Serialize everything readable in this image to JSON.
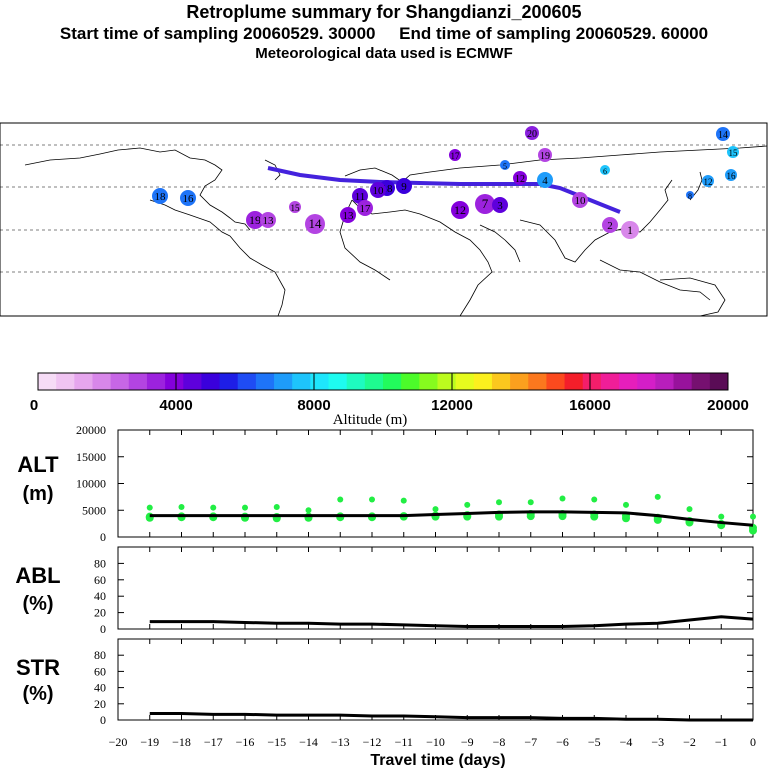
{
  "header": {
    "title": "Retroplume summary for Shangdianzi_200605",
    "line2": "Start time of sampling 20060529. 30000     End time of sampling 20060529. 60000",
    "line3": "Meteorological data used is ECMWF"
  },
  "colors": {
    "track": "#4422dd",
    "alt_dots": "#22ee44",
    "line": "#000000",
    "map_border": "#000000"
  },
  "colorbar": {
    "label": "Altitude (m)",
    "ticks": [
      "0",
      "4000",
      "8000",
      "12000",
      "16000",
      "20000"
    ],
    "colors": [
      "#f6dcf6",
      "#f0c4f2",
      "#e6a6ee",
      "#d887ea",
      "#c766e6",
      "#b344e2",
      "#9c22de",
      "#8400dc",
      "#5e00dc",
      "#3a00dc",
      "#1e1ee6",
      "#1f4cf4",
      "#1e74f8",
      "#1e9cfa",
      "#1ec4fc",
      "#1ee6fc",
      "#1efcf0",
      "#1efcc0",
      "#1efc90",
      "#22fc5c",
      "#4cfc2a",
      "#86fc1e",
      "#bcfc1e",
      "#e6fc1e",
      "#fcf01e",
      "#fcc81e",
      "#fca01e",
      "#fc781e",
      "#fc4a1e",
      "#f41e2a",
      "#f41e6a",
      "#f01e98",
      "#e61ebc",
      "#d41ec8",
      "#b81ebc",
      "#98129c",
      "#761070",
      "#5a0c56"
    ]
  },
  "map": {
    "labels": [
      {
        "t": "20",
        "c": "#8a20de"
      },
      {
        "t": "14",
        "c": "#1e74f8"
      },
      {
        "t": "15",
        "c": "#1ec4fc"
      },
      {
        "t": "12",
        "c": "#1e9cfa"
      },
      {
        "t": "16",
        "c": "#1e9cfa"
      },
      {
        "t": "19",
        "c": "#b344e2"
      },
      {
        "t": "17",
        "c": "#8400dc"
      },
      {
        "t": "18",
        "c": "#3a00dc"
      },
      {
        "t": "10",
        "c": "#5e00dc"
      },
      {
        "t": "9",
        "c": "#3a00dc"
      },
      {
        "t": "11",
        "c": "#5e00dc"
      },
      {
        "t": "13",
        "c": "#8400dc"
      },
      {
        "t": "17",
        "c": "#9c22de"
      },
      {
        "t": "18",
        "c": "#1e74f8"
      },
      {
        "t": "16",
        "c": "#1e74f8"
      },
      {
        "t": "19",
        "c": "#9c22de"
      },
      {
        "t": "15",
        "c": "#b344e2"
      },
      {
        "t": "13",
        "c": "#b344e2"
      },
      {
        "t": "14",
        "c": "#b344e2"
      },
      {
        "t": "12",
        "c": "#8400dc"
      },
      {
        "t": "7",
        "c": "#9c22de"
      },
      {
        "t": "3",
        "c": "#5e00dc"
      },
      {
        "t": "4",
        "c": "#1e9cfa"
      },
      {
        "t": "5",
        "c": "#1e74f8"
      },
      {
        "t": "2",
        "c": "#b344e2"
      },
      {
        "t": "1",
        "c": "#d887ea"
      },
      {
        "t": "6",
        "c": "#1ec4fc"
      },
      {
        "t": "8",
        "c": "#1e74f8"
      },
      {
        "t": "10",
        "c": "#b344e2"
      },
      {
        "t": "12",
        "c": "#8400dc"
      }
    ]
  },
  "chart_data": [
    {
      "type": "scatter",
      "panel": "ALT",
      "ylabel": "ALT\n(m)",
      "ylabel_line1": "ALT",
      "ylabel_line2": "(m)",
      "ylim": [
        0,
        20000
      ],
      "yticks": [
        "20000",
        "15000",
        "10000",
        "5000",
        "0"
      ],
      "x": [
        -19,
        -18,
        -17,
        -16,
        -15,
        -14,
        -13,
        -12,
        -11,
        -10,
        -9,
        -8,
        -7,
        -6,
        -5,
        -4,
        -3,
        -2,
        -1,
        0
      ],
      "median_line": [
        4000,
        4000,
        4000,
        4000,
        4000,
        4000,
        4000,
        4000,
        4000,
        4200,
        4400,
        4600,
        4700,
        4700,
        4600,
        4500,
        4000,
        3300,
        2700,
        2200
      ],
      "dots_low": [
        3600,
        3700,
        3700,
        3600,
        3500,
        3600,
        3700,
        3700,
        3800,
        3800,
        3800,
        3800,
        3900,
        3900,
        3800,
        3500,
        3200,
        2700,
        2200,
        1200
      ],
      "dots_high": [
        5500,
        5600,
        5500,
        5500,
        5600,
        5000,
        7000,
        7000,
        6800,
        5200,
        6000,
        6500,
        6500,
        7200,
        7000,
        6000,
        7500,
        5200,
        3800,
        3800
      ]
    },
    {
      "type": "line",
      "panel": "ABL",
      "ylabel_line1": "ABL",
      "ylabel_line2": "(%)",
      "ylim": [
        0,
        100
      ],
      "yticks": [
        "80",
        "60",
        "40",
        "20",
        "0"
      ],
      "x": [
        -19,
        -18,
        -17,
        -16,
        -15,
        -14,
        -13,
        -12,
        -11,
        -10,
        -9,
        -8,
        -7,
        -6,
        -5,
        -4,
        -3,
        -2,
        -1,
        0
      ],
      "values": [
        9,
        9,
        9,
        8,
        7,
        7,
        6,
        6,
        5,
        4,
        3,
        3,
        3,
        3,
        4,
        6,
        7,
        11,
        15,
        12
      ]
    },
    {
      "type": "line",
      "panel": "STR",
      "ylabel_line1": "STR",
      "ylabel_line2": "(%)",
      "ylim": [
        0,
        100
      ],
      "yticks": [
        "80",
        "60",
        "40",
        "20",
        "0"
      ],
      "x": [
        -19,
        -18,
        -17,
        -16,
        -15,
        -14,
        -13,
        -12,
        -11,
        -10,
        -9,
        -8,
        -7,
        -6,
        -5,
        -4,
        -3,
        -2,
        -1,
        0
      ],
      "values": [
        8,
        8,
        7,
        7,
        6,
        6,
        6,
        5,
        5,
        4,
        3,
        3,
        3,
        2,
        2,
        1,
        1,
        0,
        0,
        0
      ],
      "xlabel": "Travel time (days)",
      "xticks": [
        "−20",
        "−19",
        "−18",
        "−17",
        "−16",
        "−15",
        "−14",
        "−13",
        "−12",
        "−11",
        "−10",
        "−9",
        "−8",
        "−7",
        "−6",
        "−5",
        "−4",
        "−3",
        "−2",
        "−1",
        "0"
      ]
    }
  ]
}
